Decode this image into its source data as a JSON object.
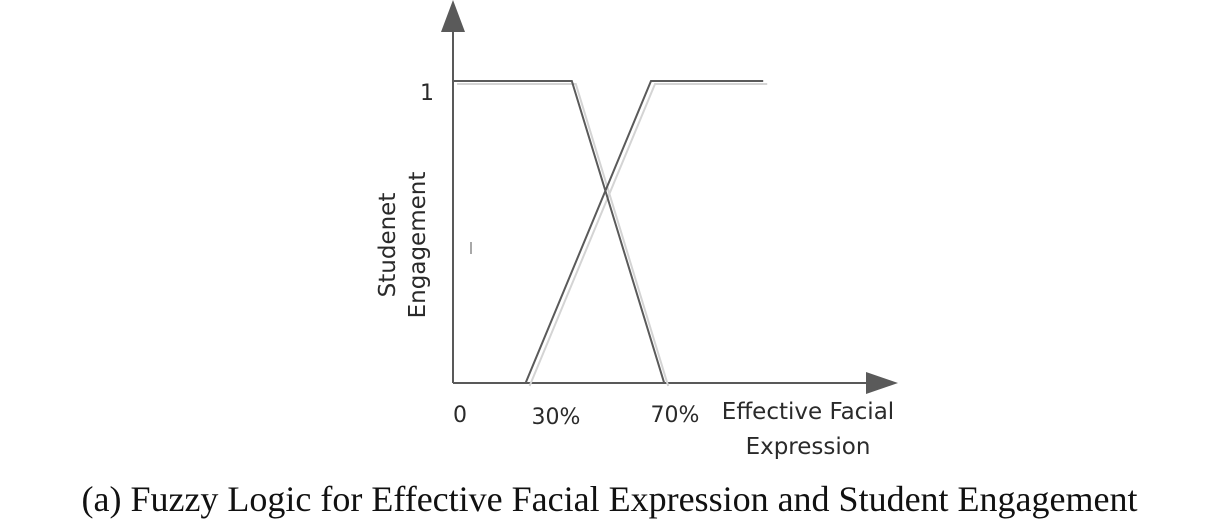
{
  "chart_data": {
    "type": "line",
    "ylabel": [
      "Studenet",
      "Engagement"
    ],
    "xlabel": [
      "Effective Facial",
      "Expression"
    ],
    "x_ticks": [
      "0",
      "30%",
      "70%"
    ],
    "y_ticks": [
      "1"
    ],
    "ylim": [
      0,
      1
    ],
    "series": [
      {
        "x": [
          0,
          18,
          32
        ],
        "y": [
          1,
          1,
          0
        ]
      },
      {
        "x": [
          11,
          30,
          47
        ],
        "y": [
          0,
          1,
          1
        ]
      }
    ]
  },
  "caption": "(a) Fuzzy Logic for Effective Facial Expression and Student Engagement",
  "colors": {
    "axis": "#595959",
    "line": "#5a5a5a",
    "shadow": "#d4d4d4"
  }
}
